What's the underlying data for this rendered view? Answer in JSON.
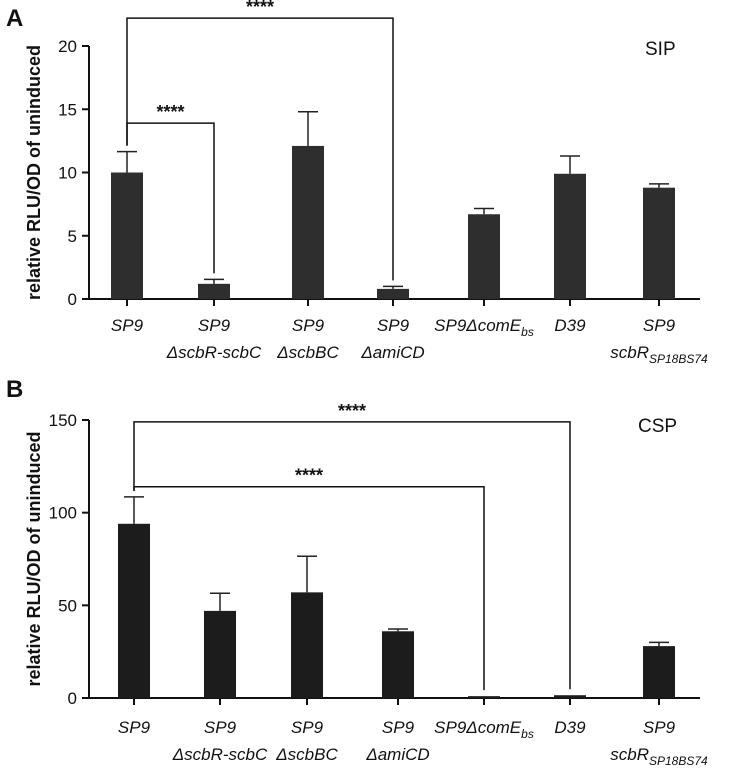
{
  "chart_data": [
    {
      "panel": "A",
      "type": "bar",
      "inset_label": "SIP",
      "ylabel": "relative RLU/OD of uninduced",
      "ylim": [
        0,
        20
      ],
      "yticks": [
        "0",
        "5",
        "10",
        "15",
        "20"
      ],
      "categories": [
        {
          "line1": "SP9",
          "line2": ""
        },
        {
          "line1": "SP9",
          "line2": "ΔscbR-scbC"
        },
        {
          "line1": "SP9",
          "line2": "ΔscbBC"
        },
        {
          "line1": "SP9",
          "line2": "ΔamiCD"
        },
        {
          "line1": "SP9ΔcomE",
          "line1_sub": "bs",
          "line2": ""
        },
        {
          "line1": "D39",
          "line2": ""
        },
        {
          "line1": "SP9",
          "line2": "scbR",
          "line2_sub": "SP18BS74"
        }
      ],
      "values": [
        10.0,
        1.2,
        12.1,
        0.8,
        6.7,
        9.9,
        8.8
      ],
      "errors": [
        1.65,
        0.35,
        2.7,
        0.2,
        0.45,
        1.4,
        0.3
      ],
      "bar_color": "#2d2e2d",
      "significance": [
        {
          "from": 0,
          "to": 1,
          "level": 13.9,
          "label": "****"
        },
        {
          "from": 0,
          "to": 3,
          "level": 22.2,
          "label": "****"
        }
      ]
    },
    {
      "panel": "B",
      "type": "bar",
      "inset_label": "CSP",
      "ylabel": "relative RLU/OD of uninduced",
      "ylim": [
        0,
        150
      ],
      "yticks": [
        "0",
        "50",
        "100",
        "150"
      ],
      "categories": [
        {
          "line1": "SP9",
          "line2": ""
        },
        {
          "line1": "SP9",
          "line2": "ΔscbR-scbC"
        },
        {
          "line1": "SP9",
          "line2": "ΔscbBC"
        },
        {
          "line1": "SP9",
          "line2": "ΔamiCD"
        },
        {
          "line1": "SP9ΔcomE",
          "line1_sub": "bs",
          "line2": ""
        },
        {
          "line1": "D39",
          "line2": ""
        },
        {
          "line1": "SP9",
          "line2": "scbR",
          "line2_sub": "SP18BS74"
        }
      ],
      "values": [
        94,
        47,
        57,
        36,
        1,
        1.5,
        28
      ],
      "errors": [
        14.5,
        9.5,
        19.5,
        1.2,
        0,
        0,
        2
      ],
      "bar_color": "#1c1c1c",
      "significance": [
        {
          "from": 0,
          "to": 4,
          "level": 114,
          "label": "****"
        },
        {
          "from": 0,
          "to": 5,
          "level": 149,
          "label": "****"
        }
      ]
    }
  ]
}
